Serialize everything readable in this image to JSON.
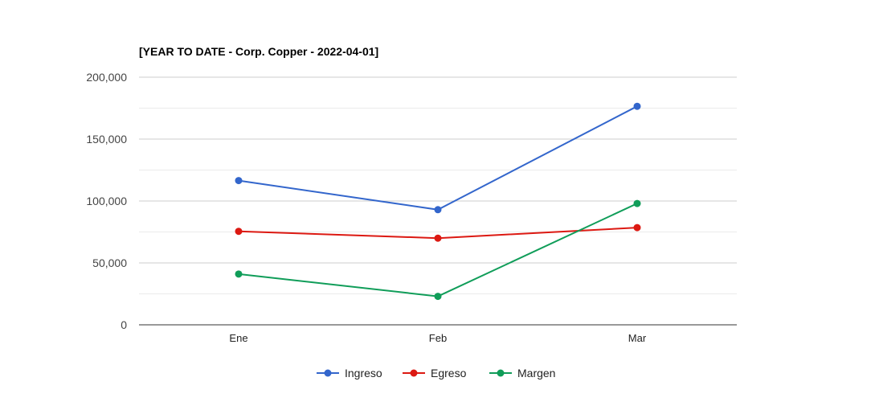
{
  "chart_data": {
    "type": "line",
    "title": "[YEAR TO DATE - Corp. Copper - 2022-04-01]",
    "categories": [
      "Ene",
      "Feb",
      "Mar"
    ],
    "series": [
      {
        "name": "Ingreso",
        "color": "#3366cc",
        "values": [
          116500,
          93000,
          176500
        ]
      },
      {
        "name": "Egreso",
        "color": "#dc1912",
        "values": [
          75500,
          70000,
          78500
        ]
      },
      {
        "name": "Margen",
        "color": "#109d59",
        "values": [
          41000,
          23000,
          98000
        ]
      }
    ],
    "y_ticks": [
      "200,000",
      "150,000",
      "100,000",
      "50,000",
      "0"
    ],
    "ylim": [
      0,
      200000
    ],
    "grid": true,
    "legend_position": "bottom"
  }
}
